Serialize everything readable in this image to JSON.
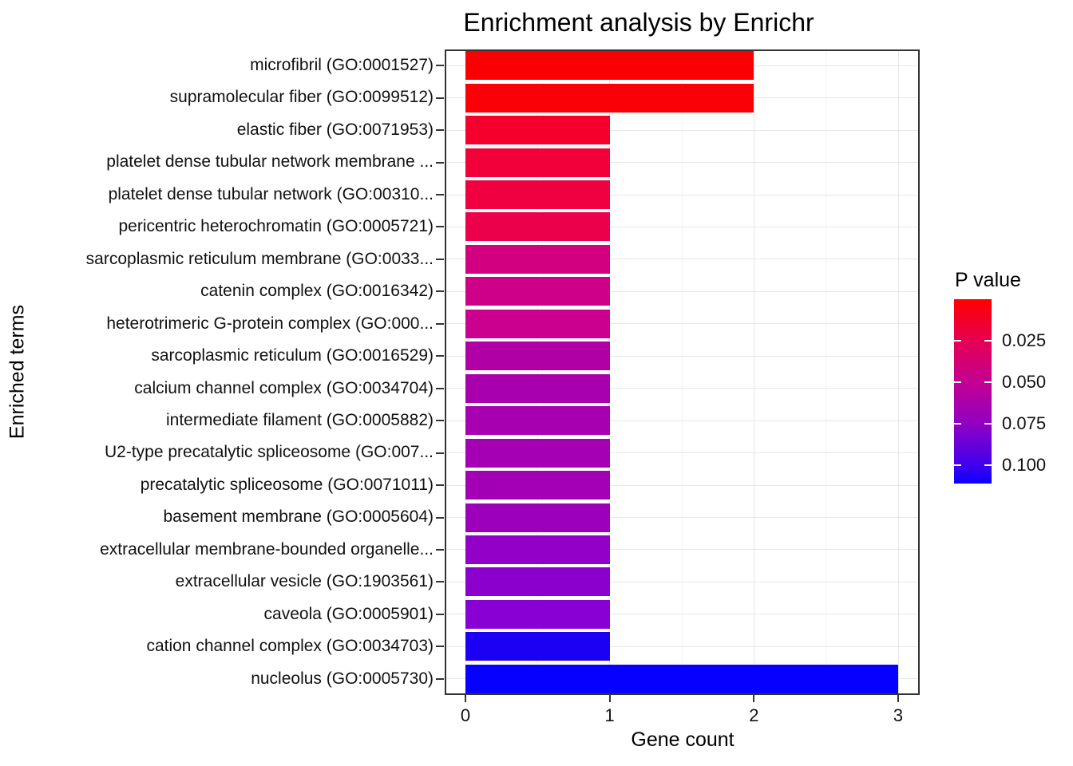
{
  "chart_data": {
    "type": "bar",
    "orientation": "horizontal",
    "title": "Enrichment analysis by Enrichr",
    "xlabel": "Gene count",
    "ylabel": "Enriched terms",
    "xlim": [
      0,
      3.15
    ],
    "x_ticks": [
      0,
      1,
      2,
      3
    ],
    "x_minor_ticks": [
      0.5,
      1.5,
      2.5
    ],
    "grid": true,
    "background_color": "#ffffff",
    "panel_border_color": "#333333",
    "categories": [
      "microfibril (GO:0001527)",
      "supramolecular fiber (GO:0099512)",
      "elastic fiber (GO:0071953)",
      "platelet dense tubular network membrane ...",
      "platelet dense tubular network (GO:00310...",
      "pericentric heterochromatin (GO:0005721)",
      "sarcoplasmic reticulum membrane (GO:0033...",
      "catenin complex (GO:0016342)",
      "heterotrimeric G-protein complex (GO:000...",
      "sarcoplasmic reticulum (GO:0016529)",
      "calcium channel complex (GO:0034704)",
      "intermediate filament (GO:0005882)",
      "U2-type precatalytic spliceosome (GO:007...",
      "precatalytic spliceosome (GO:0071011)",
      "basement membrane (GO:0005604)",
      "extracellular membrane-bounded organelle...",
      "extracellular vesicle (GO:1903561)",
      "caveola (GO:0005901)",
      "cation channel complex (GO:0034703)",
      "nucleolus (GO:0005730)"
    ],
    "values": [
      2,
      2,
      1,
      1,
      1,
      1,
      1,
      1,
      1,
      1,
      1,
      1,
      1,
      1,
      1,
      1,
      1,
      1,
      1,
      3
    ],
    "bar_colors": [
      "#fb0002",
      "#fa0007",
      "#f5002c",
      "#f20039",
      "#f00041",
      "#ec004c",
      "#d20080",
      "#ce0089",
      "#cb008e",
      "#b000a5",
      "#a900ae",
      "#a700b1",
      "#a500b3",
      "#a300b5",
      "#9c00bb",
      "#9300c7",
      "#8c00ce",
      "#8800d4",
      "#1c00f4",
      "#0500ff"
    ],
    "legend": {
      "title": "P value",
      "type": "colorbar",
      "position": "right",
      "top_color": "#ff0000",
      "bottom_color": "#0000ff",
      "tick_labels": [
        "0.025",
        "0.050",
        "0.075",
        "0.100"
      ],
      "tick_values": [
        0.025,
        0.05,
        0.075,
        0.1
      ]
    }
  }
}
